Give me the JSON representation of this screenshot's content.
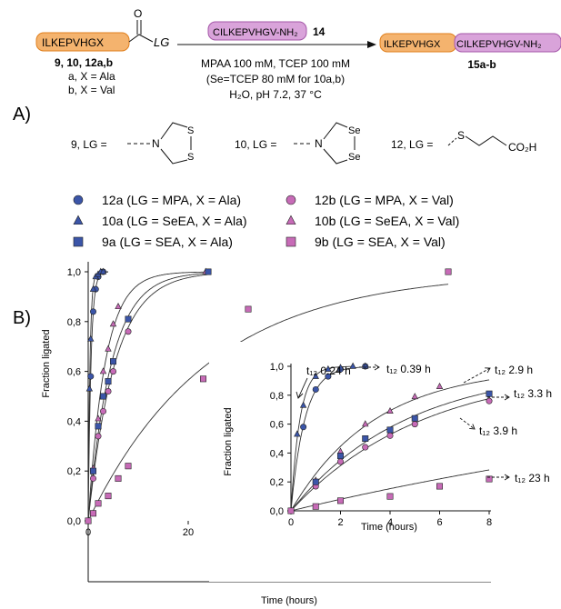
{
  "panel_a": {
    "label": "A)",
    "substrate_peptide": "ILKEPVHGX",
    "substrate_lg": "LG",
    "substrate_ids": "9, 10, 12a,b",
    "substrate_a": "a, X = Ala",
    "substrate_b": "b, X = Val",
    "reagent_peptide": "CILKEPVHGV-NH₂",
    "reagent_id": "14",
    "product_left": "ILKEPVHGX",
    "product_right": "CILKEPVHGV-NH₂",
    "product_id": "15a-b",
    "cond_1": "MPAA 100 mM, TCEP 100 mM",
    "cond_2": "(Se=TCEP 80 mM for 10a,b)",
    "cond_3": "H₂O, pH 7.2, 37 °C",
    "lg_9": "9, LG =",
    "lg_10": "10, LG =",
    "lg_12": "12, LG =",
    "atoms": {
      "N": "N",
      "S": "S",
      "Se": "Se",
      "acid": "CO₂H"
    }
  },
  "panel_b": {
    "label": "B)"
  },
  "legend": [
    {
      "text": "12a (LG = MPA, X = Ala)",
      "marker": "circle",
      "color": "#3b55a8"
    },
    {
      "text": "12b (LG = MPA, X = Val)",
      "marker": "circle",
      "color": "#c76bb7"
    },
    {
      "text": "10a (LG = SeEA, X = Ala)",
      "marker": "triangle",
      "color": "#3b55a8"
    },
    {
      "text": "10b (LG = SeEA, X = Val)",
      "marker": "triangle",
      "color": "#c76bb7"
    },
    {
      "text": "9a (LG = SEA, X = Ala)",
      "marker": "square",
      "color": "#3b55a8"
    },
    {
      "text": "9b (LG = SEA, X = Val)",
      "marker": "square",
      "color": "#c76bb7"
    }
  ],
  "chart_data": [
    {
      "type": "scatter",
      "xlabel": "Time (hours)",
      "ylabel": "Fraction ligated",
      "xlim": [
        0,
        80
      ],
      "ylim": [
        0,
        1
      ],
      "xticks": [
        0,
        20,
        40,
        60,
        80
      ],
      "yticks": [
        "0,0",
        "0,2",
        "0,4",
        "0,6",
        "0,8",
        "1,0"
      ],
      "grid": false,
      "series": [
        {
          "id": "12a",
          "marker": "circle",
          "color": "#3b55a8",
          "x": [
            0,
            0.5,
            1,
            1.5,
            2,
            3
          ],
          "y": [
            0,
            0.58,
            0.84,
            0.93,
            0.98,
            1.0
          ]
        },
        {
          "id": "12b",
          "marker": "circle",
          "color": "#c76bb7",
          "x": [
            0,
            1,
            2,
            3,
            4,
            5,
            8,
            24
          ],
          "y": [
            0,
            0.17,
            0.34,
            0.44,
            0.52,
            0.6,
            0.76,
            1.0
          ]
        },
        {
          "id": "10a",
          "marker": "triangle",
          "color": "#3b55a8",
          "x": [
            0,
            0.25,
            0.5,
            1,
            1.5,
            2,
            2.5,
            3
          ],
          "y": [
            0,
            0.53,
            0.73,
            0.93,
            0.98,
            0.99,
            1.0,
            1.0
          ]
        },
        {
          "id": "10b",
          "marker": "triangle",
          "color": "#c76bb7",
          "x": [
            0,
            1,
            2,
            3,
            4,
            5,
            6,
            23.5
          ],
          "y": [
            0,
            0.21,
            0.41,
            0.6,
            0.69,
            0.79,
            0.86,
            1.0
          ]
        },
        {
          "id": "9a",
          "marker": "square",
          "color": "#3b55a8",
          "x": [
            0,
            1,
            2,
            3,
            4,
            5,
            8,
            24
          ],
          "y": [
            0,
            0.2,
            0.38,
            0.5,
            0.56,
            0.64,
            0.81,
            1.0
          ]
        },
        {
          "id": "9b",
          "marker": "square",
          "color": "#c76bb7",
          "x": [
            0,
            1,
            2,
            4,
            6,
            8,
            23,
            32,
            72
          ],
          "y": [
            0,
            0.03,
            0.07,
            0.1,
            0.17,
            0.22,
            0.57,
            0.85,
            1.0
          ]
        }
      ]
    },
    {
      "type": "scatter",
      "xlabel": "Time (hours)",
      "ylabel": "Fraction ligated",
      "xlim": [
        0,
        8
      ],
      "ylim": [
        0,
        1
      ],
      "xticks": [
        0,
        2,
        4,
        6,
        8
      ],
      "yticks": [
        "0,0",
        "0,2",
        "0,4",
        "0,6",
        "0,8",
        "1,0"
      ],
      "grid": false,
      "annotations": [
        {
          "text": "t₁₂ 0.24 h"
        },
        {
          "text": "t₁₂ 0.39 h"
        },
        {
          "text": "t₁₂ 2.9 h"
        },
        {
          "text": "t₁₂ 3.3 h"
        },
        {
          "text": "t₁₂ 3.9 h"
        },
        {
          "text": "t₁₂ 23 h"
        }
      ]
    }
  ]
}
